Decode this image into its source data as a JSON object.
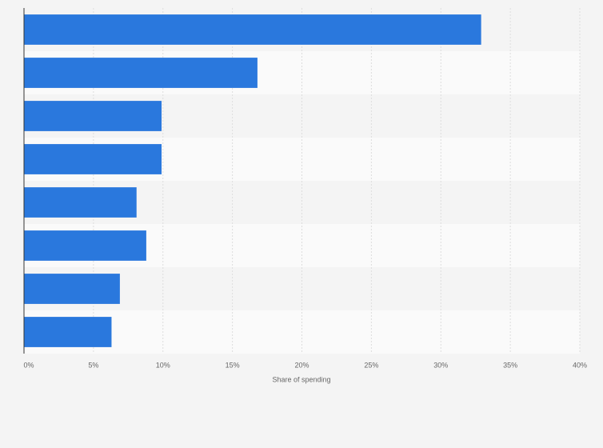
{
  "chart_data": {
    "type": "bar",
    "orientation": "horizontal",
    "categories": [
      null,
      null,
      null,
      null,
      null,
      null,
      null,
      null
    ],
    "values": [
      32.9,
      16.8,
      9.9,
      9.9,
      8.1,
      8.8,
      6.9,
      6.3
    ],
    "color": "#2a78dd",
    "xlabel": "Share of spending",
    "xlim": [
      0,
      40
    ],
    "xticks": [
      {
        "value": 0,
        "label": "0%"
      },
      {
        "value": 5,
        "label": "5%"
      },
      {
        "value": 10,
        "label": "10%"
      },
      {
        "value": 15,
        "label": "15%"
      },
      {
        "value": 20,
        "label": "20%"
      },
      {
        "value": 25,
        "label": "25%"
      },
      {
        "value": 30,
        "label": "30%"
      },
      {
        "value": 35,
        "label": "35%"
      },
      {
        "value": 40,
        "label": "40%"
      }
    ],
    "grid": true
  }
}
